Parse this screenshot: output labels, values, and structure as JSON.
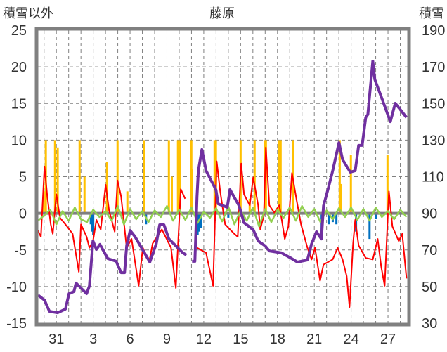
{
  "chart_data": {
    "type": "line",
    "title": "藤原",
    "ylabel_left": "積雪以外",
    "ylabel_right": "積雪",
    "ylim_left": [
      -15,
      25
    ],
    "ylim_right": [
      30,
      190
    ],
    "yticks_left": [
      -15,
      -10,
      -5,
      0,
      5,
      10,
      15,
      20,
      25
    ],
    "yticks_right": [
      30,
      50,
      70,
      90,
      110,
      130,
      150,
      170,
      190
    ],
    "xlim": [
      -1.5,
      28.6
    ],
    "xticks": [
      0,
      3,
      6,
      9,
      12,
      15,
      18,
      21,
      24,
      27
    ],
    "xtick_labels": [
      "31",
      "3",
      "6",
      "9",
      "12",
      "15",
      "18",
      "21",
      "24",
      "27"
    ],
    "grid": true,
    "colors": {
      "snow_depth": "#7030A0",
      "temperature": "#FF0000",
      "precip": "#FFC000",
      "snow_decrease": "#0070C0",
      "other": "#92D050",
      "frame": "#808080"
    },
    "series": [
      {
        "name": "snow_depth",
        "axis": "right",
        "kind": "line",
        "points": [
          [
            -1.49,
            45.3
          ],
          [
            -0.97,
            42.6
          ],
          [
            -0.57,
            36.5
          ],
          [
            0.11,
            35.7
          ],
          [
            0.74,
            37.7
          ],
          [
            1.03,
            46.1
          ],
          [
            1.43,
            47.3
          ],
          [
            1.6,
            51.9
          ],
          [
            2.0,
            49.2
          ],
          [
            2.46,
            46.1
          ],
          [
            2.69,
            50.3
          ],
          [
            2.98,
            74.9
          ],
          [
            3.26,
            70.3
          ],
          [
            3.55,
            73.0
          ],
          [
            4.18,
            65.3
          ],
          [
            4.87,
            63.8
          ],
          [
            5.27,
            57.6
          ],
          [
            5.55,
            57.6
          ],
          [
            5.72,
            72.2
          ],
          [
            6.01,
            80.6
          ],
          [
            6.41,
            77.2
          ],
          [
            7.61,
            63.4
          ],
          [
            8.13,
            73.3
          ],
          [
            8.41,
            83.7
          ],
          [
            8.76,
            83.7
          ],
          [
            9.16,
            76.0
          ],
          [
            10.3,
            68.4
          ],
          [
            10.59,
            67.2
          ],
          null,
          [
            11.05,
            63.8
          ],
          [
            11.28,
            63.8
          ],
          [
            11.45,
            99.1
          ],
          [
            11.56,
            113.3
          ],
          [
            11.85,
            124.8
          ],
          [
            12.19,
            113.3
          ],
          [
            12.99,
            102.9
          ],
          [
            13.17,
            95.2
          ],
          [
            13.91,
            93.3
          ],
          [
            14.14,
            102.9
          ],
          [
            14.88,
            94.1
          ],
          [
            15.28,
            84.9
          ],
          [
            16.03,
            81.0
          ],
          [
            16.43,
            74.9
          ],
          [
            17.0,
            72.2
          ],
          [
            17.34,
            69.5
          ],
          [
            18.32,
            68.4
          ],
          [
            19.06,
            65.7
          ],
          [
            19.63,
            63.4
          ],
          [
            20.44,
            64.5
          ],
          [
            20.78,
            73.3
          ],
          [
            21.18,
            79.9
          ],
          [
            21.58,
            76.0
          ],
          [
            21.75,
            94.1
          ],
          [
            22.15,
            104.0
          ],
          [
            22.5,
            113.3
          ],
          [
            23.01,
            128.6
          ],
          [
            23.3,
            119.4
          ],
          [
            23.93,
            112.5
          ],
          [
            24.33,
            113.3
          ],
          [
            24.61,
            127.1
          ],
          [
            24.9,
            127.1
          ],
          [
            25.19,
            142.4
          ],
          [
            25.36,
            144.0
          ],
          [
            25.76,
            173.1
          ],
          [
            25.93,
            163.1
          ],
          [
            26.5,
            152.8
          ],
          [
            27.19,
            140.1
          ],
          [
            27.59,
            150.1
          ],
          [
            28.51,
            142.4
          ]
        ]
      },
      {
        "name": "temperature",
        "axis": "left",
        "kind": "line",
        "points": [
          [
            -1.55,
            -2.2
          ],
          [
            -1.26,
            -3.2
          ],
          [
            -0.97,
            6.4
          ],
          [
            -0.74,
            2.3
          ],
          [
            -0.46,
            -1.5
          ],
          [
            -0.29,
            -2.8
          ],
          [
            0,
            2.6
          ],
          [
            0.29,
            -0.6
          ],
          [
            0.74,
            -1.5
          ],
          [
            1.32,
            -2.8
          ],
          [
            1.83,
            -8.0
          ],
          [
            2.0,
            -1.5
          ],
          [
            2.46,
            -3.2
          ],
          [
            2.69,
            -4.7
          ],
          [
            2.98,
            -3.8
          ],
          [
            3.26,
            -0.9
          ],
          [
            3.61,
            -2.2
          ],
          [
            4.01,
            3.9
          ],
          [
            4.29,
            0.4
          ],
          [
            4.75,
            -2.5
          ],
          [
            4.98,
            4.5
          ],
          [
            5.27,
            2.3
          ],
          [
            5.72,
            -4.7
          ],
          [
            6.12,
            -3.5
          ],
          [
            6.7,
            -9.9
          ],
          [
            7.04,
            -4.7
          ],
          [
            7.56,
            -6.6
          ],
          [
            7.84,
            -4.1
          ],
          [
            8.59,
            -2.2
          ],
          [
            9.33,
            -4.7
          ],
          [
            9.73,
            -10.2
          ],
          [
            10.13,
            3.3
          ],
          [
            10.48,
            2.0
          ],
          null,
          [
            11.45,
            -4.7
          ],
          [
            12.19,
            -5.4
          ],
          [
            12.76,
            -9.9
          ],
          [
            13.05,
            7.1
          ],
          [
            13.34,
            3.0
          ],
          [
            13.74,
            -1.5
          ],
          [
            14.48,
            -2.8
          ],
          [
            14.77,
            -3.2
          ],
          [
            15.05,
            6.8
          ],
          [
            15.28,
            2.6
          ],
          [
            15.74,
            1.1
          ],
          [
            16.03,
            4.9
          ],
          [
            16.43,
            1.1
          ],
          [
            16.6,
            -2.2
          ],
          [
            16.89,
            -0.3
          ],
          [
            17.06,
            9.0
          ],
          [
            17.34,
            1.1
          ],
          [
            17.74,
            0.1
          ],
          [
            18.15,
            1.1
          ],
          [
            18.32,
            -0.6
          ],
          [
            18.6,
            -3.5
          ],
          [
            18.89,
            -1.8
          ],
          [
            19.18,
            5.5
          ],
          [
            19.58,
            1.6
          ],
          [
            19.92,
            -1.5
          ],
          [
            20.44,
            -4.7
          ],
          [
            20.78,
            -6.3
          ],
          [
            21.06,
            -4.7
          ],
          [
            21.47,
            -9.2
          ],
          [
            21.75,
            -7.0
          ],
          [
            22.5,
            -6.3
          ],
          [
            22.9,
            -4.7
          ],
          [
            23.3,
            -6.3
          ],
          [
            23.64,
            -8.6
          ],
          [
            23.87,
            -12.8
          ],
          [
            24.16,
            -4.1
          ],
          [
            24.33,
            -0.9
          ],
          [
            24.61,
            -4.4
          ],
          [
            25.19,
            -6.1
          ],
          [
            25.76,
            -6.3
          ],
          [
            26.16,
            -3.5
          ],
          [
            26.45,
            -7.3
          ],
          [
            26.73,
            -9.9
          ],
          [
            27.08,
            3.0
          ],
          [
            27.36,
            -1.8
          ],
          [
            27.88,
            -3.8
          ],
          [
            28.16,
            -2.8
          ],
          [
            28.51,
            -8.9
          ]
        ]
      },
      {
        "name": "precip",
        "axis": "left",
        "kind": "bar",
        "points": [
          [
            -1.03,
            3
          ],
          [
            -0.86,
            10
          ],
          [
            -0.11,
            10
          ],
          [
            0.11,
            9
          ],
          [
            1.89,
            10
          ],
          [
            2.29,
            5
          ],
          [
            4.12,
            7
          ],
          [
            4.98,
            10
          ],
          [
            5.78,
            3
          ],
          [
            7.16,
            10
          ],
          [
            9.16,
            10
          ],
          [
            9.4,
            5
          ],
          [
            9.9,
            10
          ],
          [
            10.07,
            10
          ],
          [
            10.99,
            10
          ],
          [
            11.05,
            6
          ],
          [
            12.88,
            10
          ],
          [
            12.99,
            10
          ],
          [
            15.0,
            10
          ],
          [
            15.74,
            2
          ],
          [
            16.14,
            10
          ],
          [
            17.0,
            10
          ],
          [
            17.06,
            10
          ],
          [
            18.15,
            10
          ],
          [
            18.26,
            10
          ],
          [
            19.29,
            10
          ],
          [
            23.07,
            10
          ],
          [
            23.18,
            4
          ],
          [
            23.98,
            8
          ],
          [
            26.96,
            8
          ]
        ]
      },
      {
        "name": "snow_decrease",
        "axis": "left",
        "kind": "bar",
        "points": [
          [
            2.8,
            -1.5
          ],
          [
            2.9,
            -2.5
          ],
          [
            3.0,
            -3.0
          ],
          [
            7.3,
            -1.5
          ],
          [
            11.5,
            -3.0
          ],
          [
            11.6,
            -2.5
          ],
          [
            11.75,
            -2.0
          ],
          [
            12.9,
            -1.0
          ],
          [
            14.0,
            -0.6
          ],
          [
            21.6,
            -3.5
          ],
          [
            22.2,
            -1.5
          ],
          [
            22.5,
            -1.2
          ],
          [
            22.8,
            -1.5
          ],
          [
            24.4,
            -2.5
          ],
          [
            25.5,
            -3.5
          ],
          [
            26.0,
            -0.8
          ]
        ]
      },
      {
        "name": "other",
        "axis": "left",
        "kind": "line",
        "x_start": -1.5,
        "x_step": 0.5,
        "values": [
          -1,
          -0.3,
          0.5,
          -1.5,
          0.3,
          -1,
          0.8,
          -0.8,
          -1.2,
          0.5,
          -0.5,
          0.3,
          -1,
          1,
          -1.5,
          0.6,
          -0.8,
          0.3,
          -1.2,
          0.4,
          -0.5,
          1,
          -1,
          0.5,
          -0.9,
          0.8,
          -1.3,
          0.2,
          -0.6,
          0.7,
          -1.1,
          0.9,
          -1.5,
          0.4,
          -1,
          0.8,
          -1.8,
          0.6,
          -1.2,
          0.5,
          -0.6,
          0.8,
          -1,
          1,
          -0.5,
          0.6,
          -1.2,
          0.4,
          -0.8,
          0.7,
          -0.5,
          0.8,
          -0.9,
          0.6,
          -1,
          0.8,
          -0.5,
          0.3,
          -0.8,
          0.5,
          -0.5
        ]
      }
    ]
  }
}
